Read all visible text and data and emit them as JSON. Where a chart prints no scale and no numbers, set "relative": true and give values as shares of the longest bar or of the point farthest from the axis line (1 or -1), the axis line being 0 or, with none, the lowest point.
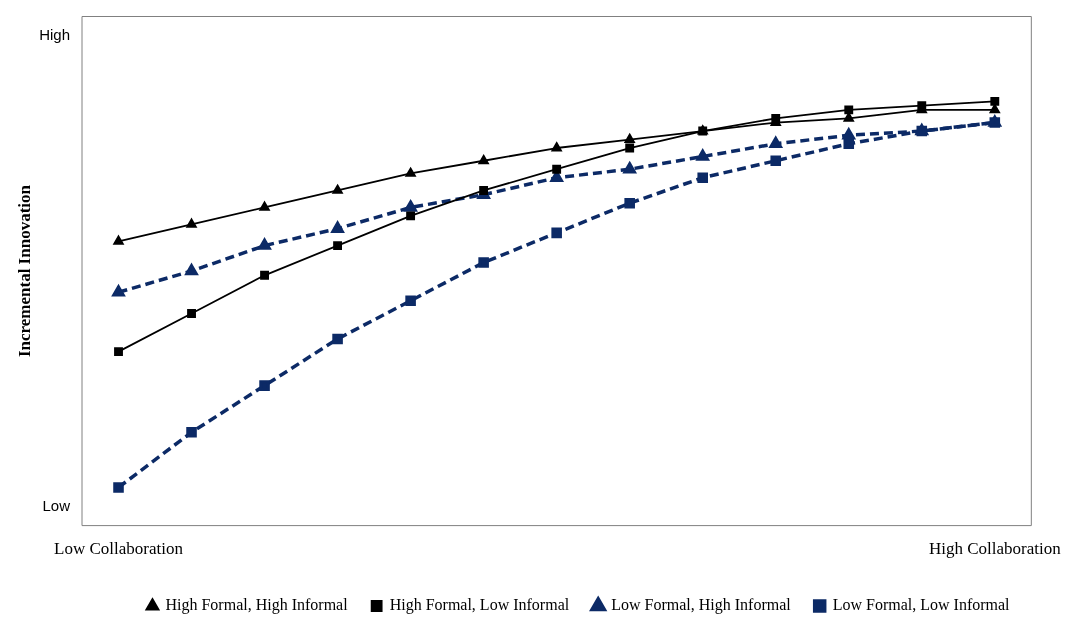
{
  "chart_data": {
    "type": "line",
    "relative": true,
    "ylabel": "Incremental Innovation",
    "annotations": [
      "High",
      "Low"
    ],
    "legend": "bottom",
    "categories": [
      "Low Collaboration",
      null,
      null,
      null,
      null,
      null,
      null,
      null,
      null,
      null,
      null,
      null,
      "High Collaboration"
    ],
    "series": [
      {
        "name": "High Formal, High Informal",
        "color": "#000000",
        "marker": "triangle",
        "line_style": "solid",
        "values": [
          0.67,
          0.71,
          0.75,
          0.79,
          0.83,
          0.86,
          0.89,
          0.91,
          0.93,
          0.95,
          0.96,
          0.98,
          0.98
        ]
      },
      {
        "name": "High Formal, Low Informal",
        "color": "#000000",
        "marker": "square",
        "line_style": "solid",
        "values": [
          0.41,
          0.5,
          0.59,
          0.66,
          0.73,
          0.79,
          0.84,
          0.89,
          0.93,
          0.96,
          0.98,
          0.99,
          1
        ]
      },
      {
        "name": "Low Formal, High Informal",
        "color": "#0c2a66",
        "marker": "triangle",
        "line_style": "dashed",
        "values": [
          0.55,
          0.6,
          0.66,
          0.7,
          0.75,
          0.78,
          0.82,
          0.84,
          0.87,
          0.9,
          0.92,
          0.93,
          0.95
        ]
      },
      {
        "name": "Low Formal, Low Informal",
        "color": "#0c2a66",
        "marker": "square",
        "line_style": "dashed",
        "values": [
          0.09,
          0.22,
          0.33,
          0.44,
          0.53,
          0.62,
          0.69,
          0.76,
          0.82,
          0.86,
          0.9,
          0.93,
          0.95
        ]
      }
    ]
  }
}
